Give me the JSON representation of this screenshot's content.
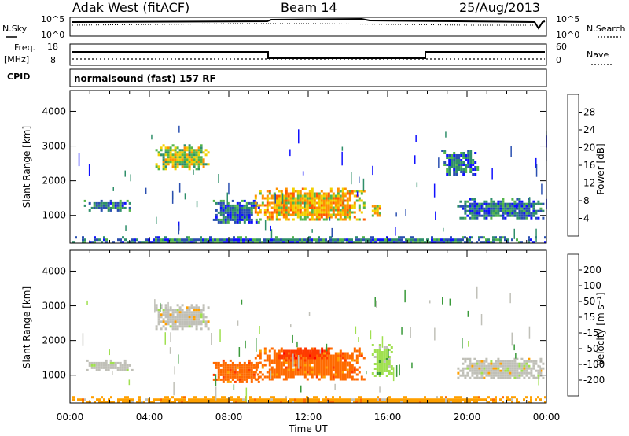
{
  "header": {
    "station": "Adak West (fitACF)",
    "beam": "Beam 14",
    "date": "25/Aug/2013"
  },
  "status_panels": {
    "nsky_label": "N.Sky",
    "nsky_ticks": [
      "10^5",
      "10^0"
    ],
    "nsearch_label": "N.Search",
    "nsearch_ticks": [
      "10^5",
      "10^0"
    ],
    "freq_label": "Freq.",
    "freq_unit": "[MHz]",
    "freq_ticks": [
      "18",
      "8"
    ],
    "nave_label": "Nave",
    "nave_ticks": [
      "60",
      "0"
    ],
    "cpid_label": "CPID",
    "cpid_text": "normalsound (fast) 157 RF"
  },
  "colors": {
    "power_scale": [
      "#1010ff",
      "#2a4fb0",
      "#2f8f6a",
      "#53b54a",
      "#f2d000",
      "#ff9000",
      "#ff5a00",
      "#ff0000"
    ],
    "velocity_scale": [
      "#ff0000",
      "#ff3a00",
      "#ff6a00",
      "#ffa000",
      "#c0c0b8",
      "#a0e050",
      "#3a9a3a",
      "#1a5aa0",
      "#1010d0"
    ]
  },
  "chart_data": [
    {
      "type": "heatmap",
      "title": "",
      "xlabel": "",
      "ylabel": "Slant Range [km]",
      "x_ticks": [
        "00:00",
        "04:00",
        "08:00",
        "12:00",
        "16:00",
        "20:00",
        "00:00"
      ],
      "xlim_hours": [
        0,
        24
      ],
      "y_ticks": [
        1000,
        2000,
        3000,
        4000
      ],
      "ylim": [
        200,
        4600
      ],
      "colorbar": {
        "label": "Power [dB]",
        "ticks": [
          "4",
          "8",
          "12",
          "16",
          "20",
          "24",
          "28"
        ],
        "range": [
          0,
          32
        ]
      },
      "regions": [
        {
          "t0": 0.7,
          "t1": 3.1,
          "r0": 1150,
          "r1": 1450,
          "level": 8
        },
        {
          "t0": 4.3,
          "t1": 7.0,
          "r0": 2350,
          "r1": 3050,
          "level": 16
        },
        {
          "t0": 7.2,
          "t1": 9.5,
          "r0": 800,
          "r1": 1450,
          "level": 8
        },
        {
          "t0": 9.3,
          "t1": 14.8,
          "r0": 850,
          "r1": 1800,
          "level": 20
        },
        {
          "t0": 15.2,
          "t1": 15.6,
          "r0": 1000,
          "r1": 1300,
          "level": 18
        },
        {
          "t0": 19.5,
          "t1": 23.8,
          "r0": 900,
          "r1": 1500,
          "level": 8
        },
        {
          "t0": 18.7,
          "t1": 20.5,
          "r0": 2200,
          "r1": 2900,
          "level": 6
        },
        {
          "t0": 0,
          "t1": 24,
          "r0": 200,
          "r1": 400,
          "level": 6
        }
      ]
    },
    {
      "type": "heatmap",
      "title": "",
      "xlabel": "Time UT",
      "ylabel": "Slant Range [km]",
      "x_ticks": [
        "00:00",
        "04:00",
        "08:00",
        "12:00",
        "16:00",
        "20:00",
        "00:00"
      ],
      "xlim_hours": [
        0,
        24
      ],
      "y_ticks": [
        1000,
        2000,
        3000,
        4000
      ],
      "ylim": [
        200,
        4600
      ],
      "colorbar": {
        "label": "Velocity [m s⁻¹]",
        "ticks": [
          "200",
          "100",
          "50",
          "15",
          "-15",
          "-50",
          "-100",
          "-200"
        ],
        "range": [
          -300,
          300
        ]
      },
      "regions": [
        {
          "t0": 0.7,
          "t1": 3.1,
          "r0": 1150,
          "r1": 1450,
          "velocity": 0
        },
        {
          "t0": 4.3,
          "t1": 7.0,
          "r0": 2350,
          "r1": 3050,
          "velocity": 0
        },
        {
          "t0": 7.2,
          "t1": 9.5,
          "r0": 800,
          "r1": 1450,
          "velocity": -60
        },
        {
          "t0": 9.3,
          "t1": 14.8,
          "r0": 850,
          "r1": 1800,
          "velocity": -90
        },
        {
          "t0": 10.5,
          "t1": 13.0,
          "r0": 1500,
          "r1": 1800,
          "velocity": -180
        },
        {
          "t0": 15.2,
          "t1": 16.2,
          "r0": 1000,
          "r1": 1900,
          "velocity": 30
        },
        {
          "t0": 19.5,
          "t1": 23.8,
          "r0": 900,
          "r1": 1500,
          "velocity": 0
        },
        {
          "t0": 0,
          "t1": 24,
          "r0": 200,
          "r1": 400,
          "velocity": -40
        }
      ]
    }
  ]
}
